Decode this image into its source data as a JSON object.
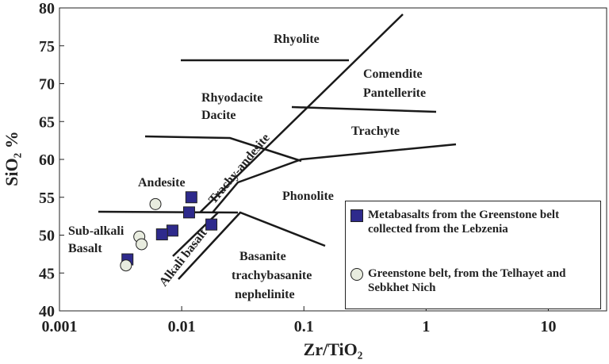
{
  "chart_data": {
    "type": "scatter",
    "x_label": "Zr/TiO₂",
    "y_label": "SiO₂ %",
    "log_x": true,
    "xlim": [
      0.001,
      30
    ],
    "xticks": [
      {
        "value": 0.001,
        "label": "0.001"
      },
      {
        "value": 0.01,
        "label": "0.01"
      },
      {
        "value": 0.1,
        "label": "0.1"
      },
      1,
      10
    ],
    "ylim": [
      40,
      80
    ],
    "yticks": [
      40,
      45,
      50,
      55,
      60,
      65,
      70,
      75,
      80
    ],
    "legend": "lower right",
    "annotations": [
      "Rhyolite",
      "Comendite",
      "Pantellerite",
      "Rhyodacite",
      "Dacite",
      "Trachyte",
      "Trachy-andesite",
      "Andesite",
      "Phonolite",
      "Sub-alkali",
      "Basalt",
      "Alkali basalt",
      "Basanite",
      "trachybasanite",
      "nephelinite"
    ],
    "series": [
      {
        "name": "Metabasalts from the Greenstone belt collected from the Lebzenia",
        "marker": "square",
        "color": "#2e2a8c",
        "x": [
          0.012,
          0.0115,
          0.0084,
          0.0069,
          0.0036,
          0.0175
        ],
        "values": [
          55.0,
          53.0,
          50.6,
          50.1,
          46.8,
          51.4
        ]
      },
      {
        "name": "Greenstone belt, from the Telhayet and Sebkhet Nich",
        "marker": "circle",
        "color": "#e8ecdf",
        "x": [
          0.0061,
          0.0045,
          0.0047,
          0.0035
        ],
        "values": [
          54.1,
          49.8,
          48.8,
          46.0
        ]
      }
    ]
  }
}
